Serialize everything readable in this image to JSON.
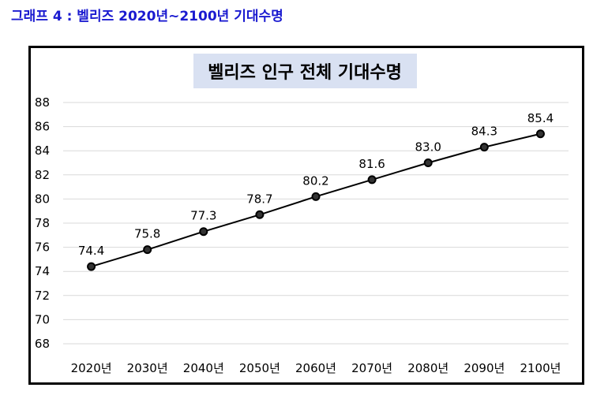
{
  "caption": "그래프 4 : 벨리즈 2020년~2100년 기대수명",
  "chart_data": {
    "type": "line",
    "title": "벨리즈 인구 전체 기대수명",
    "categories": [
      "2020년",
      "2030년",
      "2040년",
      "2050년",
      "2060년",
      "2070년",
      "2080년",
      "2090년",
      "2100년"
    ],
    "values": [
      74.4,
      75.8,
      77.3,
      78.7,
      80.2,
      81.6,
      83.0,
      84.3,
      85.4
    ],
    "value_labels": [
      "74.4",
      "75.8",
      "77.3",
      "78.7",
      "80.2",
      "81.6",
      "83.0",
      "84.3",
      "85.4"
    ],
    "ylim": [
      68,
      88
    ],
    "yticks": [
      "68",
      "70",
      "72",
      "74",
      "76",
      "78",
      "80",
      "82",
      "84",
      "86",
      "88"
    ],
    "grid": true,
    "legend": "none",
    "title_bg": "#d9e1f2",
    "line_color": "#000000"
  }
}
